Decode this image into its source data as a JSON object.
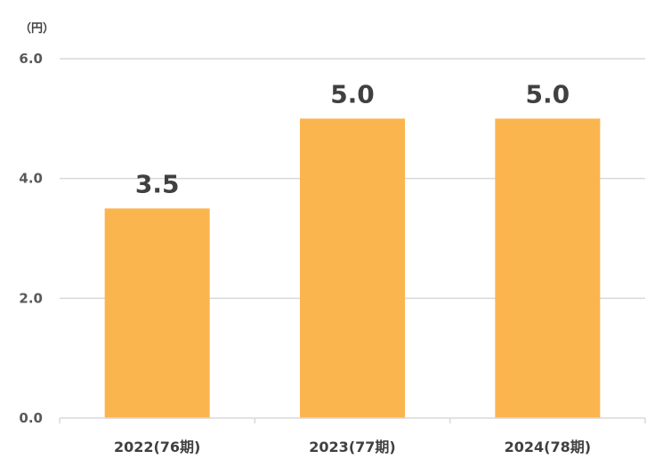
{
  "chart_data": {
    "type": "bar",
    "title": "",
    "xlabel": "",
    "ylabel": "",
    "unit": "（円）",
    "categories": [
      "2022(76期)",
      "2023(77期)",
      "2024(78期)"
    ],
    "values": [
      3.5,
      5.0,
      5.0
    ],
    "data_labels": [
      "3.5",
      "5.0",
      "5.0"
    ],
    "ylim": [
      0,
      6
    ],
    "yticks": [
      0,
      2,
      4,
      6
    ],
    "ytick_labels": [
      "0.0",
      "2.0",
      "4.0",
      "6.0"
    ],
    "grid": true,
    "bar_color": "#FBB54F",
    "grid_color": "#D9D9D9",
    "legend": "none"
  }
}
